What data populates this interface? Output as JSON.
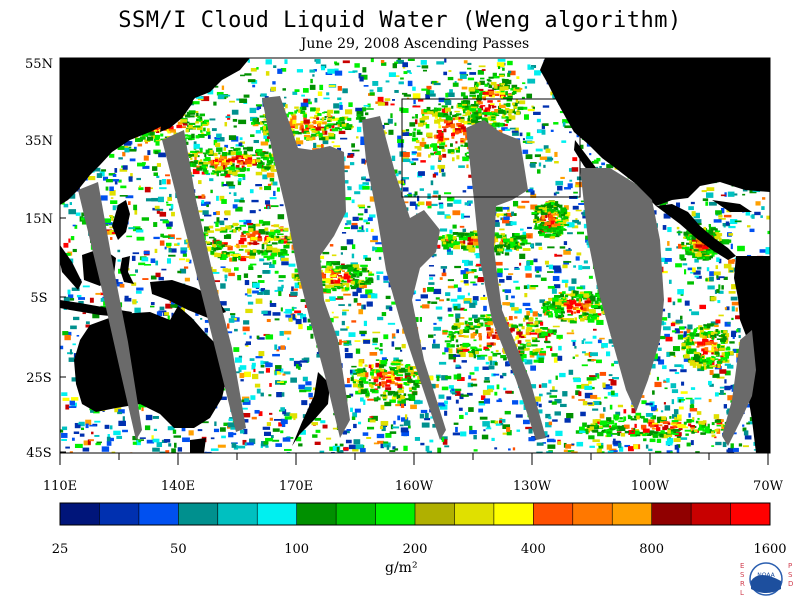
{
  "title": "SSM/I Cloud Liquid Water (Weng algorithm)",
  "subtitle": "June 29, 2008  Ascending Passes",
  "latitude_labels": [
    "55N",
    "35N",
    "15N",
    "5S",
    "25S",
    "45S"
  ],
  "longitude_labels": [
    "110E",
    "140E",
    "170E",
    "160W",
    "130W",
    "100W",
    "70W"
  ],
  "colorbar": {
    "labels": [
      "25",
      "50",
      "100",
      "200",
      "400",
      "800",
      "1600"
    ],
    "colors": [
      "#00157a",
      "#0030b0",
      "#0050f0",
      "#00908e",
      "#00c0c0",
      "#00f0f0",
      "#009000",
      "#00c000",
      "#00f000",
      "#b0b000",
      "#e0e000",
      "#ffff00",
      "#ff5000",
      "#ff7800",
      "#ffa000",
      "#900000",
      "#c80000",
      "#ff0000"
    ]
  },
  "units": "g/m²",
  "colors": {
    "land": "#000000",
    "missing_swath": "#6a6a6a",
    "background": "#ffffff"
  },
  "logo": {
    "text": "NOAA",
    "left_letters": [
      "E",
      "S",
      "R",
      "L"
    ],
    "right_letters": [
      "P",
      "S",
      "D"
    ]
  }
}
